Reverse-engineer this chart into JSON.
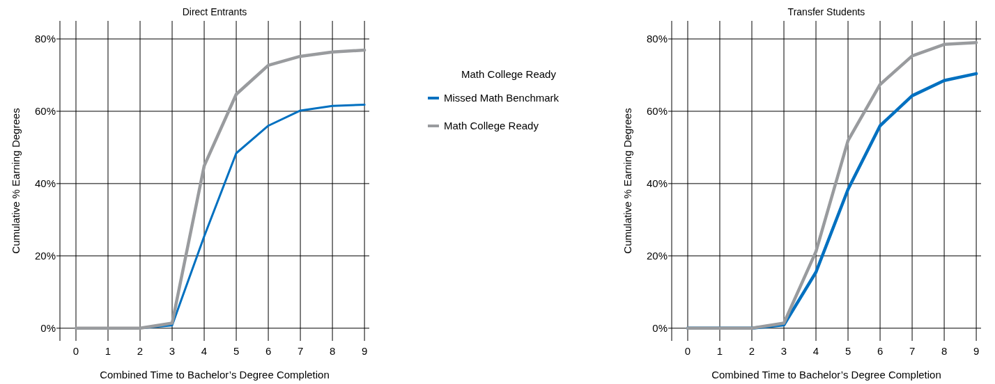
{
  "chart_data": [
    {
      "type": "line",
      "title": "Direct Entrants",
      "xlabel": "Combined Time to Bachelor’s Degree Completion",
      "ylabel": "Cumulative % Earning Degrees",
      "x": [
        0,
        1,
        2,
        3,
        4,
        5,
        6,
        7,
        8,
        9
      ],
      "series": [
        {
          "name": "Missed Math Benchmark",
          "color": "#0070c0",
          "values": [
            0,
            0,
            0,
            0.8,
            25.4,
            48.4,
            56,
            60.2,
            61.5,
            61.8
          ]
        },
        {
          "name": "Math College Ready",
          "color": "#999b9e",
          "values": [
            0,
            0,
            0,
            1.4,
            44.9,
            64.7,
            72.7,
            75.2,
            76.4,
            76.9
          ]
        }
      ],
      "legend_title": "Math College Ready",
      "legend": "right",
      "grid": true,
      "marker": "none",
      "line_style": "solid",
      "xlim": [
        -0.5,
        9.15
      ],
      "xticks": [
        0,
        1,
        2,
        3,
        4,
        5,
        6,
        7,
        8,
        9
      ],
      "ylim": [
        -3.5,
        85
      ],
      "yticks": [
        {
          "value": 0,
          "label": "0%"
        },
        {
          "value": 20,
          "label": "20%"
        },
        {
          "value": 40,
          "label": "40%"
        },
        {
          "value": 60,
          "label": "60%"
        },
        {
          "value": 80,
          "label": "80%"
        }
      ]
    },
    {
      "type": "line",
      "title": "Transfer Students",
      "xlabel": "Combined Time to Bachelor’s Degree Completion",
      "ylabel": "Cumulative % Earning Degrees",
      "x": [
        0,
        1,
        2,
        3,
        4,
        5,
        6,
        7,
        8,
        9
      ],
      "series": [
        {
          "color": "#0070c0",
          "values": [
            0,
            0,
            0,
            0.9,
            15.5,
            38.4,
            56,
            64.3,
            68.5,
            70.4
          ]
        },
        {
          "color": "#999b9e",
          "values": [
            0,
            0,
            0,
            1.4,
            21.2,
            51.9,
            67.4,
            75.3,
            78.5,
            79
          ]
        }
      ],
      "grid": true,
      "marker": "none",
      "line_style": "solid",
      "xlim": [
        -0.5,
        9.15
      ],
      "xticks": [
        0,
        1,
        2,
        3,
        4,
        5,
        6,
        7,
        8,
        9
      ],
      "ylim": [
        -3.5,
        85
      ],
      "yticks": [
        {
          "value": 0,
          "label": "0%"
        },
        {
          "value": 20,
          "label": "20%"
        },
        {
          "value": 40,
          "label": "40%"
        },
        {
          "value": 60,
          "label": "60%"
        },
        {
          "value": 80,
          "label": "80%"
        }
      ]
    }
  ]
}
